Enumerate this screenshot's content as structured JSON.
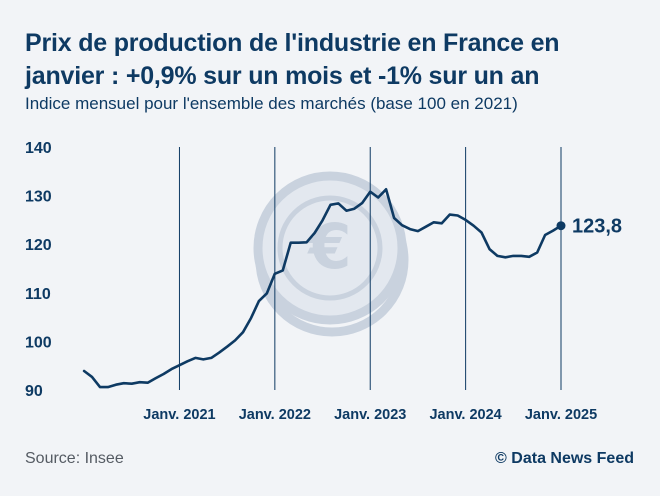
{
  "header": {
    "title": "Prix de production de l'industrie en France en janvier : +0,9% sur un mois et -1% sur un an",
    "subtitle": "Indice mensuel pour l'ensemble des marchés (base 100 en 2021)"
  },
  "footer": {
    "source": "Source: Insee",
    "credit": "© Data News Feed"
  },
  "colors": {
    "line": "#0e3a63",
    "background": "#f2f4f7",
    "watermark": "#c9d2de"
  },
  "watermark_icon": "euro-coin-icon",
  "chart_data": {
    "type": "line",
    "title": "Prix de production de l'industrie en France en janvier : +0,9% sur un mois et -1% sur un an",
    "subtitle": "Indice mensuel pour l'ensemble des marchés (base 100 en 2021)",
    "ylim": [
      90,
      140
    ],
    "yticks": [
      "90",
      "100",
      "110",
      "120",
      "130",
      "140"
    ],
    "xlim": [
      "2020-01",
      "2025-01"
    ],
    "xticks": [
      {
        "date": "2021-01",
        "label": "Janv. 2021"
      },
      {
        "date": "2022-01",
        "label": "Janv. 2022"
      },
      {
        "date": "2023-01",
        "label": "Janv. 2023"
      },
      {
        "date": "2024-01",
        "label": "Janv. 2024"
      },
      {
        "date": "2025-01",
        "label": "Janv. 2025"
      }
    ],
    "grid": "vertical lines at January of each year",
    "series": [
      {
        "dates": [
          "2020-01",
          "2020-02",
          "2020-03",
          "2020-04",
          "2020-05",
          "2020-06",
          "2020-07",
          "2020-08",
          "2020-09",
          "2020-10",
          "2020-11",
          "2020-12",
          "2021-01",
          "2021-02",
          "2021-03",
          "2021-04",
          "2021-05",
          "2021-06",
          "2021-07",
          "2021-08",
          "2021-09",
          "2021-10",
          "2021-11",
          "2021-12",
          "2022-01",
          "2022-02",
          "2022-03",
          "2022-04",
          "2022-05",
          "2022-06",
          "2022-07",
          "2022-08",
          "2022-09",
          "2022-10",
          "2022-11",
          "2022-12",
          "2023-01",
          "2023-02",
          "2023-03",
          "2023-04",
          "2023-05",
          "2023-06",
          "2023-07",
          "2023-08",
          "2023-09",
          "2023-10",
          "2023-11",
          "2023-12",
          "2024-01",
          "2024-02",
          "2024-03",
          "2024-04",
          "2024-05",
          "2024-06",
          "2024-07",
          "2024-08",
          "2024-09",
          "2024-10",
          "2024-11",
          "2024-12",
          "2025-01"
        ],
        "values": [
          93.9,
          92.7,
          90.6,
          90.6,
          91.1,
          91.4,
          91.3,
          91.6,
          91.5,
          92.4,
          93.3,
          94.3,
          95.1,
          95.9,
          96.6,
          96.3,
          96.6,
          97.7,
          98.9,
          100.2,
          101.9,
          104.8,
          108.3,
          109.9,
          113.9,
          114.6,
          120.3,
          120.3,
          120.4,
          122.3,
          124.9,
          128.1,
          128.4,
          126.9,
          127.3,
          128.5,
          130.8,
          129.6,
          131.3,
          125.4,
          123.9,
          123.1,
          122.7,
          123.6,
          124.5,
          124.3,
          126.1,
          125.9,
          125.0,
          123.8,
          122.4,
          119.0,
          117.6,
          117.3,
          117.6,
          117.6,
          117.4,
          118.3,
          121.9,
          122.8,
          123.8
        ]
      }
    ],
    "annotations": [
      {
        "date": "2025-01",
        "value": 123.8,
        "label": "123,8"
      }
    ]
  }
}
